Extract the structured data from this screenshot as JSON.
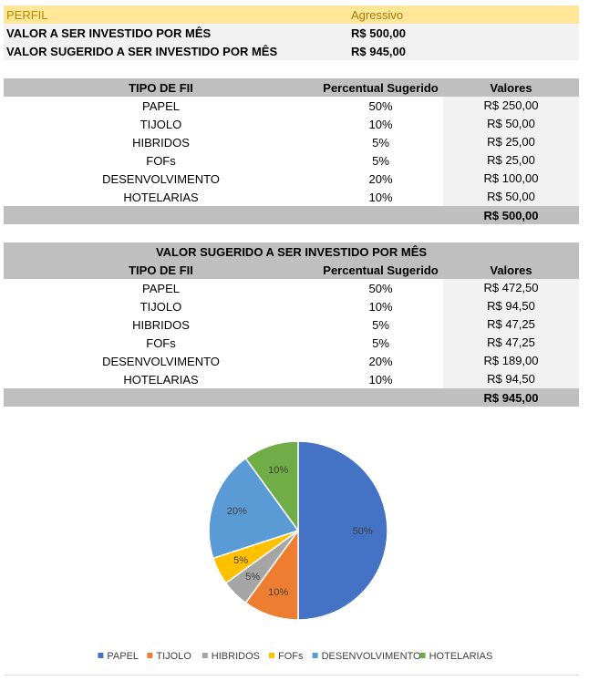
{
  "profile": {
    "label": "PERFIL",
    "value": "Agressivo"
  },
  "monthly": {
    "label": "VALOR A SER INVESTIDO POR MÊS",
    "value": "R$ 500,00"
  },
  "suggested": {
    "label": "VALOR SUGERIDO A SER INVESTIDO POR MÊS",
    "value": "R$ 945,00"
  },
  "table1": {
    "headers": [
      "TIPO DE FII",
      "Percentual Sugerido",
      "Valores"
    ],
    "rows": [
      {
        "type": "PAPEL",
        "pct": "50%",
        "value": "R$ 250,00"
      },
      {
        "type": "TIJOLO",
        "pct": "10%",
        "value": "R$ 50,00"
      },
      {
        "type": "HIBRIDOS",
        "pct": "5%",
        "value": "R$ 25,00"
      },
      {
        "type": "FOFs",
        "pct": "5%",
        "value": "R$ 25,00"
      },
      {
        "type": "DESENVOLVIMENTO",
        "pct": "20%",
        "value": "R$ 100,00"
      },
      {
        "type": "HOTELARIAS",
        "pct": "10%",
        "value": "R$ 50,00"
      }
    ],
    "total": "R$ 500,00"
  },
  "table2": {
    "title": "VALOR SUGERIDO A SER INVESTIDO POR MÊS",
    "headers": [
      "TIPO DE FII",
      "Percentual Sugerido",
      "Valores"
    ],
    "rows": [
      {
        "type": "PAPEL",
        "pct": "50%",
        "value": "R$ 472,50"
      },
      {
        "type": "TIJOLO",
        "pct": "10%",
        "value": "R$ 94,50"
      },
      {
        "type": "HIBRIDOS",
        "pct": "5%",
        "value": "R$ 47,25"
      },
      {
        "type": "FOFs",
        "pct": "5%",
        "value": "R$ 47,25"
      },
      {
        "type": "DESENVOLVIMENTO",
        "pct": "20%",
        "value": "R$ 189,00"
      },
      {
        "type": "HOTELARIAS",
        "pct": "10%",
        "value": "R$ 94,50"
      }
    ],
    "total": "R$ 945,00"
  },
  "chart_data": {
    "type": "pie",
    "categories": [
      "PAPEL",
      "TIJOLO",
      "HIBRIDOS",
      "FOFs",
      "DESENVOLVIMENTO",
      "HOTELARIAS"
    ],
    "values": [
      50,
      10,
      5,
      5,
      20,
      10
    ],
    "labels": [
      "50%",
      "10%",
      "5%",
      "5%",
      "20%",
      "10%"
    ],
    "colors": [
      "#4472c4",
      "#ed7d31",
      "#a5a5a5",
      "#ffc000",
      "#5b9bd5",
      "#70ad47"
    ],
    "legend_position": "bottom"
  }
}
